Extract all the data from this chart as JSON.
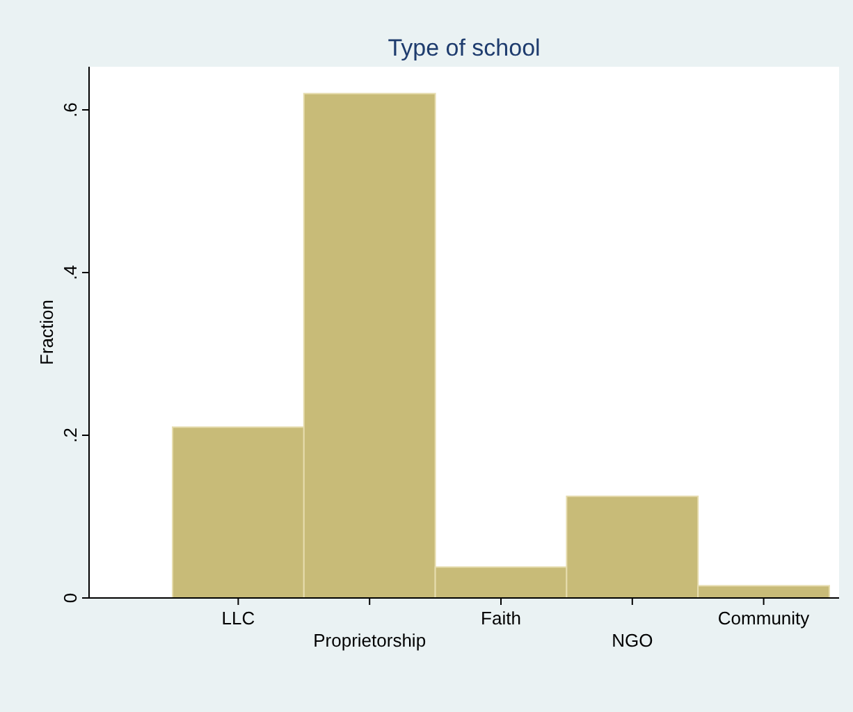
{
  "chart_data": {
    "type": "bar",
    "title": "Type of school",
    "ylabel": "Fraction",
    "categories": [
      "LLC",
      "Proprietorship",
      "Faith",
      "NGO",
      "Community"
    ],
    "values": [
      0.21,
      0.62,
      0.038,
      0.125,
      0.015
    ],
    "color": "#c8bb78",
    "ylim": [
      0,
      0.653
    ],
    "yticks": [
      0,
      {
        "value": 0.2,
        "label": ".2"
      },
      {
        "value": 0.4,
        "label": ".4"
      },
      {
        "value": 0.6,
        "label": ".6"
      }
    ],
    "grid": false
  }
}
